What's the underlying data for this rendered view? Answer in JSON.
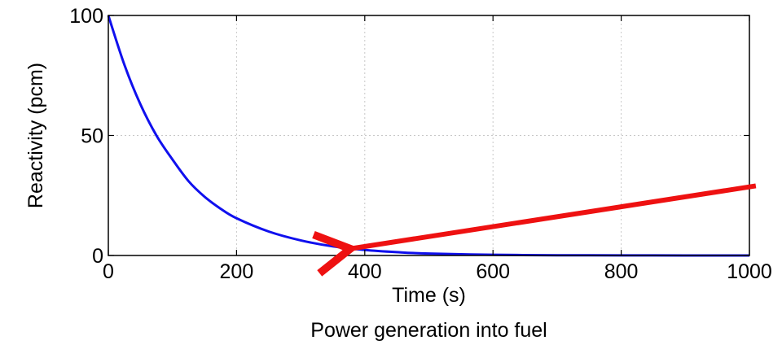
{
  "chart_data": {
    "type": "line",
    "title": "",
    "xlabel": "Time (s)",
    "ylabel": "Reactivity (pcm)",
    "caption": "Power generation into fuel",
    "xlim": [
      0,
      1000
    ],
    "ylim": [
      0,
      100
    ],
    "xticks": [
      0,
      200,
      400,
      600,
      800,
      1000
    ],
    "yticks": [
      0,
      50,
      100
    ],
    "xtick_labels": [
      "0",
      "200",
      "400",
      "600",
      "800",
      "1000"
    ],
    "ytick_labels": [
      "0",
      "50",
      "100"
    ],
    "grid": true,
    "series": [
      {
        "color": "#1010ee",
        "x": [
          0,
          25,
          50,
          75,
          100,
          125,
          150,
          175,
          200,
          250,
          300,
          350,
          400,
          450,
          500,
          600,
          700,
          800,
          900,
          1000
        ],
        "y": [
          100,
          79.5,
          63,
          50,
          40,
          31,
          24.5,
          19.5,
          15.5,
          10,
          6.3,
          3.8,
          2.3,
          1.4,
          0.8,
          0.3,
          0.1,
          0.05,
          0.02,
          0.01
        ]
      }
    ],
    "annotations": [
      {
        "type": "arrow",
        "color": "#ee1111",
        "from": [
          1010,
          29
        ],
        "to": [
          370,
          2.5
        ]
      }
    ]
  }
}
